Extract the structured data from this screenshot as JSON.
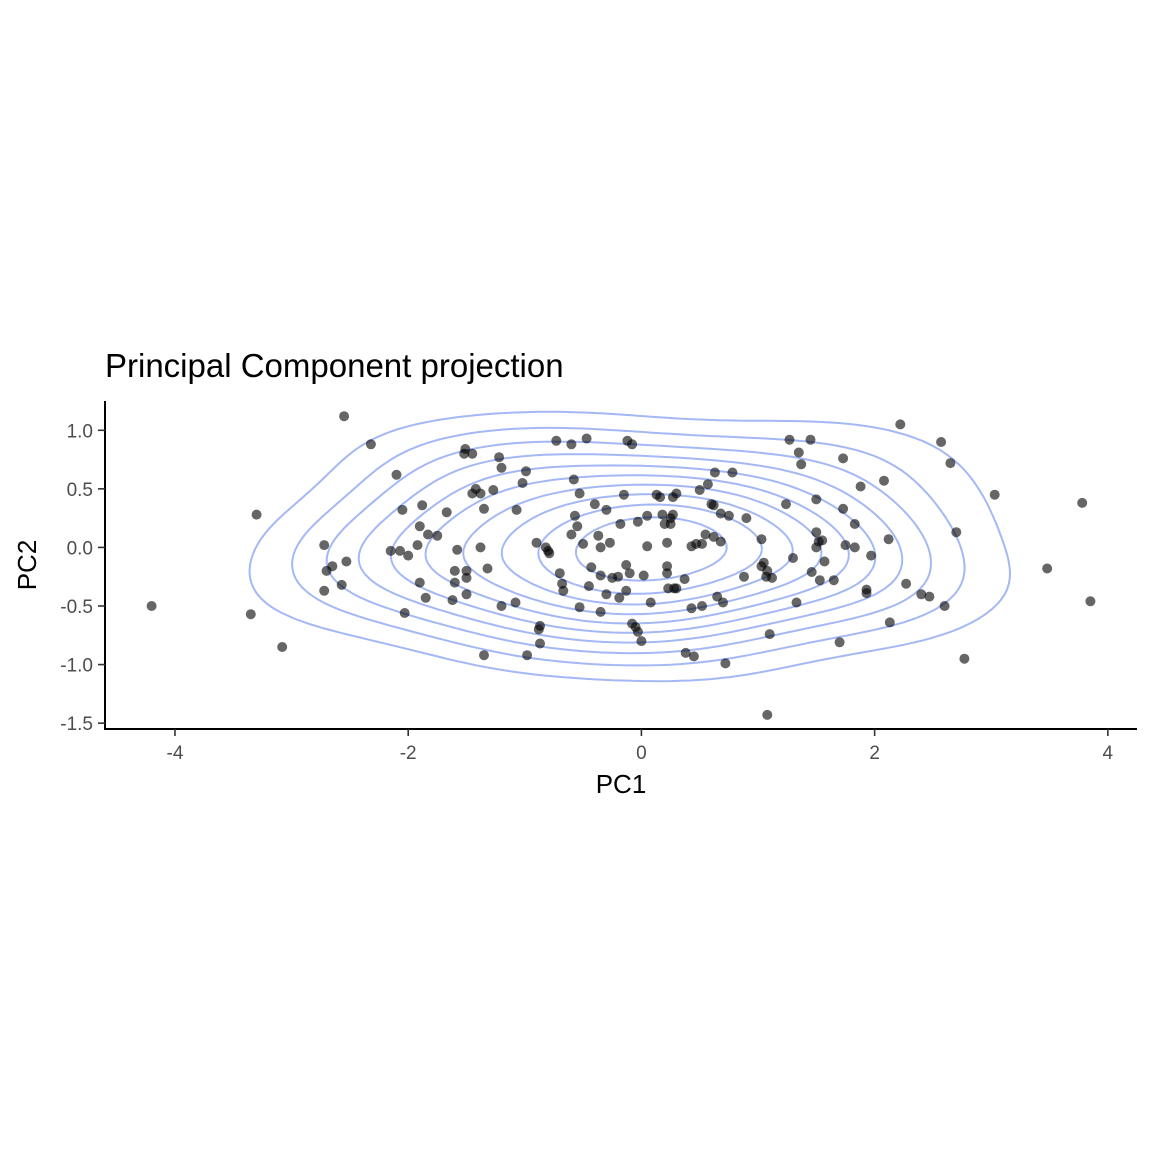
{
  "chart_data": {
    "type": "scatter",
    "title": "Principal Component projection",
    "xlabel": "PC1",
    "ylabel": "PC2",
    "xlim": [
      -4.6,
      4.25
    ],
    "ylim": [
      -1.55,
      1.25
    ],
    "x_ticks": [
      -4,
      -2,
      0,
      2,
      4
    ],
    "x_tick_labels": [
      "-4",
      "-2",
      "0",
      "2",
      "4"
    ],
    "y_ticks": [
      -1.5,
      -1.0,
      -0.5,
      0.0,
      0.5,
      1.0
    ],
    "y_tick_labels": [
      "-1.5",
      "-1.0",
      "-0.5",
      "0.0",
      "0.5",
      "1.0"
    ],
    "grid": false,
    "legend": "none",
    "overlay": "2d density contours",
    "point_color": "#000000",
    "point_alpha": 0.6,
    "contour_color": "#a4b8f5",
    "points": [
      {
        "x": -4.2,
        "y": -0.5
      },
      {
        "x": -3.35,
        "y": -0.57
      },
      {
        "x": -3.3,
        "y": 0.28
      },
      {
        "x": -3.08,
        "y": -0.85
      },
      {
        "x": -2.72,
        "y": 0.02
      },
      {
        "x": -2.72,
        "y": -0.37
      },
      {
        "x": -2.7,
        "y": -0.2
      },
      {
        "x": -2.65,
        "y": -0.16
      },
      {
        "x": -2.55,
        "y": 1.12
      },
      {
        "x": -2.53,
        "y": -0.12
      },
      {
        "x": -2.57,
        "y": -0.32
      },
      {
        "x": -2.32,
        "y": 0.88
      },
      {
        "x": -2.15,
        "y": -0.03
      },
      {
        "x": -2.07,
        "y": -0.03
      },
      {
        "x": -2.1,
        "y": 0.62
      },
      {
        "x": -2.05,
        "y": 0.32
      },
      {
        "x": -2.03,
        "y": -0.56
      },
      {
        "x": -2.0,
        "y": -0.07
      },
      {
        "x": -1.92,
        "y": 0.02
      },
      {
        "x": -1.9,
        "y": 0.18
      },
      {
        "x": -1.88,
        "y": 0.36
      },
      {
        "x": -1.9,
        "y": -0.3
      },
      {
        "x": -1.85,
        "y": -0.43
      },
      {
        "x": -1.83,
        "y": 0.11
      },
      {
        "x": -1.75,
        "y": 0.1
      },
      {
        "x": -1.67,
        "y": 0.3
      },
      {
        "x": -1.6,
        "y": -0.2
      },
      {
        "x": -1.6,
        "y": -0.3
      },
      {
        "x": -1.62,
        "y": -0.45
      },
      {
        "x": -1.58,
        "y": -0.02
      },
      {
        "x": -1.52,
        "y": 0.8
      },
      {
        "x": -1.51,
        "y": 0.84
      },
      {
        "x": -1.5,
        "y": -0.2
      },
      {
        "x": -1.5,
        "y": -0.26
      },
      {
        "x": -1.5,
        "y": -0.4
      },
      {
        "x": -1.45,
        "y": 0.8
      },
      {
        "x": -1.45,
        "y": 0.46
      },
      {
        "x": -1.42,
        "y": 0.5
      },
      {
        "x": -1.38,
        "y": 0.46
      },
      {
        "x": -1.38,
        "y": 0.0
      },
      {
        "x": -1.35,
        "y": 0.33
      },
      {
        "x": -1.35,
        "y": -0.92
      },
      {
        "x": -1.32,
        "y": -0.18
      },
      {
        "x": -1.27,
        "y": 0.49
      },
      {
        "x": -1.22,
        "y": 0.77
      },
      {
        "x": -1.2,
        "y": 0.68
      },
      {
        "x": -1.2,
        "y": -0.5
      },
      {
        "x": -1.08,
        "y": -0.47
      },
      {
        "x": -1.07,
        "y": 0.32
      },
      {
        "x": -1.02,
        "y": 0.55
      },
      {
        "x": -0.99,
        "y": 0.65
      },
      {
        "x": -0.98,
        "y": -0.92
      },
      {
        "x": -0.9,
        "y": 0.04
      },
      {
        "x": -0.88,
        "y": -0.7
      },
      {
        "x": -0.87,
        "y": -0.67
      },
      {
        "x": -0.87,
        "y": -0.82
      },
      {
        "x": -0.82,
        "y": 0.0
      },
      {
        "x": -0.8,
        "y": -0.03
      },
      {
        "x": -0.79,
        "y": -0.05
      },
      {
        "x": -0.73,
        "y": 0.91
      },
      {
        "x": -0.7,
        "y": -0.22
      },
      {
        "x": -0.68,
        "y": -0.31
      },
      {
        "x": -0.67,
        "y": -0.37
      },
      {
        "x": -0.6,
        "y": 0.11
      },
      {
        "x": -0.6,
        "y": 0.88
      },
      {
        "x": -0.58,
        "y": 0.58
      },
      {
        "x": -0.57,
        "y": 0.27
      },
      {
        "x": -0.55,
        "y": 0.18
      },
      {
        "x": -0.53,
        "y": 0.46
      },
      {
        "x": -0.53,
        "y": -0.51
      },
      {
        "x": -0.5,
        "y": 0.03
      },
      {
        "x": -0.47,
        "y": 0.93
      },
      {
        "x": -0.45,
        "y": -0.33
      },
      {
        "x": -0.43,
        "y": -0.17
      },
      {
        "x": -0.4,
        "y": 0.37
      },
      {
        "x": -0.37,
        "y": 0.1
      },
      {
        "x": -0.35,
        "y": -0.24
      },
      {
        "x": -0.35,
        "y": 0.0
      },
      {
        "x": -0.35,
        "y": -0.55
      },
      {
        "x": -0.3,
        "y": 0.32
      },
      {
        "x": -0.3,
        "y": -0.4
      },
      {
        "x": -0.27,
        "y": 0.04
      },
      {
        "x": -0.25,
        "y": -0.26
      },
      {
        "x": -0.2,
        "y": -0.25
      },
      {
        "x": -0.19,
        "y": -0.43
      },
      {
        "x": -0.18,
        "y": 0.2
      },
      {
        "x": -0.15,
        "y": 0.45
      },
      {
        "x": -0.13,
        "y": -0.15
      },
      {
        "x": -0.13,
        "y": -0.37
      },
      {
        "x": -0.12,
        "y": 0.91
      },
      {
        "x": -0.1,
        "y": -0.22
      },
      {
        "x": -0.08,
        "y": 0.88
      },
      {
        "x": -0.08,
        "y": -0.65
      },
      {
        "x": -0.05,
        "y": -0.68
      },
      {
        "x": -0.03,
        "y": 0.22
      },
      {
        "x": -0.03,
        "y": -0.72
      },
      {
        "x": 0.0,
        "y": -0.8
      },
      {
        "x": 0.02,
        "y": -0.24
      },
      {
        "x": 0.05,
        "y": 0.27
      },
      {
        "x": 0.05,
        "y": 0.01
      },
      {
        "x": 0.08,
        "y": -0.47
      },
      {
        "x": 0.13,
        "y": 0.45
      },
      {
        "x": 0.16,
        "y": 0.43
      },
      {
        "x": 0.18,
        "y": 0.28
      },
      {
        "x": 0.2,
        "y": 0.2
      },
      {
        "x": 0.22,
        "y": 0.04
      },
      {
        "x": 0.22,
        "y": -0.16
      },
      {
        "x": 0.22,
        "y": -0.22
      },
      {
        "x": 0.23,
        "y": -0.35
      },
      {
        "x": 0.25,
        "y": 0.25
      },
      {
        "x": 0.25,
        "y": 0.2
      },
      {
        "x": 0.27,
        "y": 0.43
      },
      {
        "x": 0.27,
        "y": 0.28
      },
      {
        "x": 0.28,
        "y": -0.35
      },
      {
        "x": 0.3,
        "y": -0.35
      },
      {
        "x": 0.3,
        "y": 0.46
      },
      {
        "x": 0.37,
        "y": -0.27
      },
      {
        "x": 0.38,
        "y": -0.9
      },
      {
        "x": 0.43,
        "y": 0.01
      },
      {
        "x": 0.43,
        "y": -0.52
      },
      {
        "x": 0.45,
        "y": -0.93
      },
      {
        "x": 0.47,
        "y": 0.03
      },
      {
        "x": 0.5,
        "y": 0.49
      },
      {
        "x": 0.52,
        "y": 0.03
      },
      {
        "x": 0.52,
        "y": -0.5
      },
      {
        "x": 0.55,
        "y": 0.11
      },
      {
        "x": 0.57,
        "y": 0.54
      },
      {
        "x": 0.6,
        "y": 0.37
      },
      {
        "x": 0.62,
        "y": 0.36
      },
      {
        "x": 0.62,
        "y": 0.09
      },
      {
        "x": 0.63,
        "y": 0.64
      },
      {
        "x": 0.65,
        "y": -0.42
      },
      {
        "x": 0.68,
        "y": 0.29
      },
      {
        "x": 0.68,
        "y": 0.05
      },
      {
        "x": 0.7,
        "y": -0.47
      },
      {
        "x": 0.72,
        "y": -0.99
      },
      {
        "x": 0.75,
        "y": 0.27
      },
      {
        "x": 0.78,
        "y": 0.64
      },
      {
        "x": 0.88,
        "y": -0.25
      },
      {
        "x": 0.9,
        "y": 0.25
      },
      {
        "x": 1.03,
        "y": 0.07
      },
      {
        "x": 1.03,
        "y": -0.16
      },
      {
        "x": 1.05,
        "y": -0.13
      },
      {
        "x": 1.07,
        "y": -0.25
      },
      {
        "x": 1.08,
        "y": -1.43
      },
      {
        "x": 1.08,
        "y": -0.2
      },
      {
        "x": 1.1,
        "y": -0.74
      },
      {
        "x": 1.12,
        "y": -0.26
      },
      {
        "x": 1.24,
        "y": 0.37
      },
      {
        "x": 1.27,
        "y": 0.92
      },
      {
        "x": 1.3,
        "y": -0.09
      },
      {
        "x": 1.33,
        "y": -0.47
      },
      {
        "x": 1.35,
        "y": 0.81
      },
      {
        "x": 1.37,
        "y": 0.71
      },
      {
        "x": 1.45,
        "y": 0.92
      },
      {
        "x": 1.46,
        "y": -0.21
      },
      {
        "x": 1.5,
        "y": 0.13
      },
      {
        "x": 1.5,
        "y": 0.41
      },
      {
        "x": 1.5,
        "y": 0.0
      },
      {
        "x": 1.52,
        "y": 0.05
      },
      {
        "x": 1.53,
        "y": -0.28
      },
      {
        "x": 1.55,
        "y": 0.06
      },
      {
        "x": 1.57,
        "y": -0.12
      },
      {
        "x": 1.65,
        "y": -0.28
      },
      {
        "x": 1.7,
        "y": -0.81
      },
      {
        "x": 1.73,
        "y": 0.76
      },
      {
        "x": 1.73,
        "y": 0.33
      },
      {
        "x": 1.75,
        "y": 0.02
      },
      {
        "x": 1.83,
        "y": 0.0
      },
      {
        "x": 1.83,
        "y": 0.2
      },
      {
        "x": 1.88,
        "y": 0.52
      },
      {
        "x": 1.93,
        "y": -0.36
      },
      {
        "x": 1.93,
        "y": -0.39
      },
      {
        "x": 1.97,
        "y": -0.07
      },
      {
        "x": 2.08,
        "y": 0.57
      },
      {
        "x": 2.12,
        "y": 0.07
      },
      {
        "x": 2.13,
        "y": -0.64
      },
      {
        "x": 2.22,
        "y": 1.05
      },
      {
        "x": 2.27,
        "y": -0.31
      },
      {
        "x": 2.4,
        "y": -0.4
      },
      {
        "x": 2.47,
        "y": -0.42
      },
      {
        "x": 2.57,
        "y": 0.9
      },
      {
        "x": 2.6,
        "y": -0.5
      },
      {
        "x": 2.65,
        "y": 0.72
      },
      {
        "x": 2.7,
        "y": 0.13
      },
      {
        "x": 2.77,
        "y": -0.95
      },
      {
        "x": 3.03,
        "y": 0.45
      },
      {
        "x": 3.48,
        "y": -0.18
      },
      {
        "x": 3.78,
        "y": 0.38
      },
      {
        "x": 3.85,
        "y": -0.46
      }
    ]
  }
}
